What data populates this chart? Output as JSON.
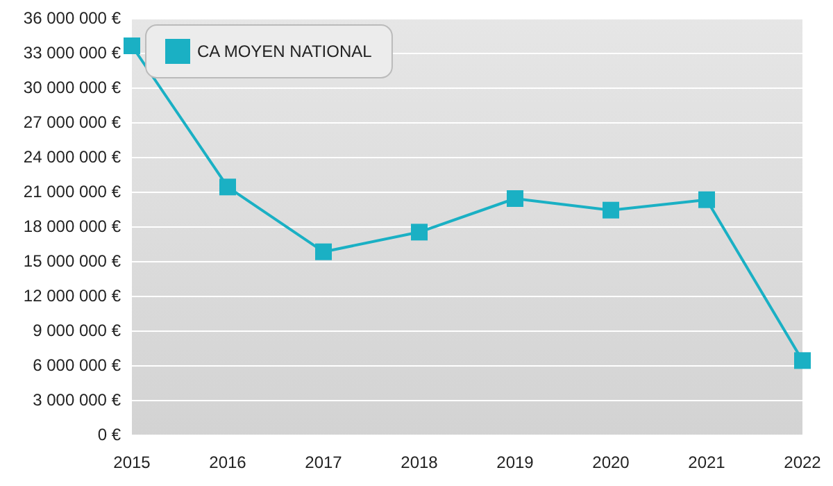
{
  "chart_data": {
    "type": "line",
    "categories": [
      "2015",
      "2016",
      "2017",
      "2018",
      "2019",
      "2020",
      "2021",
      "2022"
    ],
    "series": [
      {
        "name": "CA MOYEN NATIONAL",
        "color": "#1ab0c4",
        "values": [
          33600000,
          21400000,
          15800000,
          17500000,
          20400000,
          19400000,
          20300000,
          6400000
        ]
      }
    ],
    "ylim": [
      0,
      36000000
    ],
    "yticks": [
      {
        "value": 0,
        "label": "0 €"
      },
      {
        "value": 3000000,
        "label": "3 000 000 €"
      },
      {
        "value": 6000000,
        "label": "6 000 000 €"
      },
      {
        "value": 9000000,
        "label": "9 000 000 €"
      },
      {
        "value": 12000000,
        "label": "12 000 000 €"
      },
      {
        "value": 15000000,
        "label": "15 000 000 €"
      },
      {
        "value": 18000000,
        "label": "18 000 000 €"
      },
      {
        "value": 21000000,
        "label": "21 000 000 €"
      },
      {
        "value": 24000000,
        "label": "24 000 000 €"
      },
      {
        "value": 27000000,
        "label": "27 000 000 €"
      },
      {
        "value": 30000000,
        "label": "30 000 000 €"
      },
      {
        "value": 33000000,
        "label": "33 000 000 €"
      },
      {
        "value": 36000000,
        "label": "36 000 000 €"
      }
    ],
    "grid": "y",
    "legend": "top left",
    "marker": "square",
    "line_style": "solid"
  }
}
